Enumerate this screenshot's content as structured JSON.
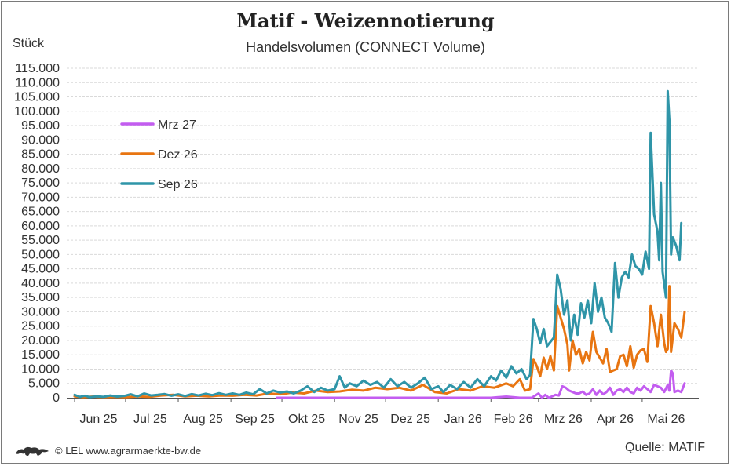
{
  "title": "Matif - Weizennotierung",
  "subtitle": "Handelsvolumen (CONNECT Volume)",
  "unit_label": "Stück",
  "footer": {
    "copyright": "© LEL www.agrarmaerkte-bw.de",
    "source": "Quelle: MATIF",
    "logo_icon": "lion-crest-icon"
  },
  "colors": {
    "Mrz 27": "#c35df0",
    "Dez 26": "#e87511",
    "Sep 26": "#2f95a8",
    "grid": "#d9d9d9"
  },
  "chart_data": {
    "type": "line",
    "title": "Matif - Weizennotierung",
    "subtitle": "Handelsvolumen (CONNECT Volume)",
    "ylabel": "Stück",
    "ylim": [
      0,
      115000
    ],
    "ytick_step": 5000,
    "ytick_labels": [
      "0",
      "5.000",
      "10.000",
      "15.000",
      "20.000",
      "25.000",
      "30.000",
      "35.000",
      "40.000",
      "45.000",
      "50.000",
      "55.000",
      "60.000",
      "65.000",
      "70.000",
      "75.000",
      "80.000",
      "85.000",
      "90.000",
      "95.000",
      "100.000",
      "105.000",
      "110.000",
      "115.000"
    ],
    "xtick_labels": [
      "Jun 25",
      "Jul 25",
      "Aug 25",
      "Sep 25",
      "Okt 25",
      "Nov 25",
      "Dez 25",
      "Jan 26",
      "Feb 26",
      "Mrz 26",
      "Apr 26",
      "Mai 26"
    ],
    "x_start": "2025-06-01",
    "grid": true,
    "legend_position": "top-left",
    "series": [
      {
        "name": "Mrz 27",
        "color": "#c35df0",
        "points": [
          [
            "2025-09-28",
            0
          ],
          [
            "2025-10-15",
            0
          ],
          [
            "2025-11-01",
            0
          ],
          [
            "2025-11-20",
            0
          ],
          [
            "2025-12-05",
            0
          ],
          [
            "2025-12-20",
            0
          ],
          [
            "2026-01-05",
            0
          ],
          [
            "2026-01-20",
            0
          ],
          [
            "2026-02-01",
            0
          ],
          [
            "2026-02-10",
            400
          ],
          [
            "2026-02-18",
            0
          ],
          [
            "2026-02-25",
            0
          ],
          [
            "2026-03-01",
            1500
          ],
          [
            "2026-03-03",
            0
          ],
          [
            "2026-03-05",
            1000
          ],
          [
            "2026-03-07",
            0
          ],
          [
            "2026-03-09",
            500
          ],
          [
            "2026-03-11",
            1000
          ],
          [
            "2026-03-13",
            800
          ],
          [
            "2026-03-15",
            4000
          ],
          [
            "2026-03-17",
            3500
          ],
          [
            "2026-03-19",
            2500
          ],
          [
            "2026-03-21",
            2000
          ],
          [
            "2026-03-23",
            1500
          ],
          [
            "2026-03-25",
            1500
          ],
          [
            "2026-03-27",
            2200
          ],
          [
            "2026-03-29",
            1000
          ],
          [
            "2026-03-31",
            1500
          ],
          [
            "2026-04-02",
            3000
          ],
          [
            "2026-04-04",
            1000
          ],
          [
            "2026-04-06",
            2500
          ],
          [
            "2026-04-08",
            1200
          ],
          [
            "2026-04-10",
            2000
          ],
          [
            "2026-04-12",
            3500
          ],
          [
            "2026-04-14",
            1000
          ],
          [
            "2026-04-16",
            2500
          ],
          [
            "2026-04-18",
            3000
          ],
          [
            "2026-04-20",
            2000
          ],
          [
            "2026-04-22",
            3500
          ],
          [
            "2026-04-24",
            2000
          ],
          [
            "2026-04-26",
            1500
          ],
          [
            "2026-04-28",
            3500
          ],
          [
            "2026-04-30",
            2500
          ],
          [
            "2026-05-02",
            4000
          ],
          [
            "2026-05-04",
            3000
          ],
          [
            "2026-05-06",
            2000
          ],
          [
            "2026-05-08",
            4500
          ],
          [
            "2026-05-10",
            4000
          ],
          [
            "2026-05-12",
            3500
          ],
          [
            "2026-05-14",
            2000
          ],
          [
            "2026-05-16",
            4500
          ],
          [
            "2026-05-17",
            2500
          ],
          [
            "2026-05-18",
            9500
          ],
          [
            "2026-05-19",
            8500
          ],
          [
            "2026-05-20",
            2000
          ],
          [
            "2026-05-22",
            2500
          ],
          [
            "2026-05-24",
            2000
          ],
          [
            "2026-05-26",
            5000
          ]
        ]
      },
      {
        "name": "Dez 26",
        "color": "#e87511",
        "points": [
          [
            "2025-06-01",
            500
          ],
          [
            "2025-06-06",
            200
          ],
          [
            "2025-06-12",
            400
          ],
          [
            "2025-06-18",
            200
          ],
          [
            "2025-06-25",
            300
          ],
          [
            "2025-07-01",
            200
          ],
          [
            "2025-07-08",
            500
          ],
          [
            "2025-07-15",
            300
          ],
          [
            "2025-07-22",
            800
          ],
          [
            "2025-07-29",
            1000
          ],
          [
            "2025-08-05",
            500
          ],
          [
            "2025-08-12",
            700
          ],
          [
            "2025-08-19",
            500
          ],
          [
            "2025-08-26",
            800
          ],
          [
            "2025-09-02",
            700
          ],
          [
            "2025-09-09",
            1000
          ],
          [
            "2025-09-16",
            800
          ],
          [
            "2025-09-23",
            1500
          ],
          [
            "2025-09-30",
            1200
          ],
          [
            "2025-10-07",
            1800
          ],
          [
            "2025-10-14",
            1500
          ],
          [
            "2025-10-21",
            2500
          ],
          [
            "2025-10-28",
            2000
          ],
          [
            "2025-11-04",
            2200
          ],
          [
            "2025-11-11",
            2800
          ],
          [
            "2025-11-18",
            2500
          ],
          [
            "2025-11-25",
            3500
          ],
          [
            "2025-12-02",
            3000
          ],
          [
            "2025-12-09",
            3500
          ],
          [
            "2025-12-16",
            2500
          ],
          [
            "2025-12-23",
            4500
          ],
          [
            "2025-12-30",
            2000
          ],
          [
            "2026-01-06",
            1500
          ],
          [
            "2026-01-13",
            3000
          ],
          [
            "2026-01-20",
            2500
          ],
          [
            "2026-01-27",
            4000
          ],
          [
            "2026-02-03",
            3500
          ],
          [
            "2026-02-10",
            5000
          ],
          [
            "2026-02-14",
            4000
          ],
          [
            "2026-02-18",
            6500
          ],
          [
            "2026-02-21",
            2500
          ],
          [
            "2026-02-24",
            3000
          ],
          [
            "2026-02-26",
            13500
          ],
          [
            "2026-02-28",
            11000
          ],
          [
            "2026-03-02",
            7500
          ],
          [
            "2026-03-04",
            14000
          ],
          [
            "2026-03-06",
            10000
          ],
          [
            "2026-03-08",
            14500
          ],
          [
            "2026-03-10",
            9500
          ],
          [
            "2026-03-12",
            32000
          ],
          [
            "2026-03-14",
            28000
          ],
          [
            "2026-03-16",
            24000
          ],
          [
            "2026-03-18",
            18500
          ],
          [
            "2026-03-19",
            9500
          ],
          [
            "2026-03-21",
            20000
          ],
          [
            "2026-03-23",
            15000
          ],
          [
            "2026-03-25",
            17000
          ],
          [
            "2026-03-27",
            12000
          ],
          [
            "2026-03-29",
            16000
          ],
          [
            "2026-03-31",
            13000
          ],
          [
            "2026-04-02",
            23000
          ],
          [
            "2026-04-04",
            16000
          ],
          [
            "2026-04-06",
            14000
          ],
          [
            "2026-04-08",
            12000
          ],
          [
            "2026-04-10",
            17000
          ],
          [
            "2026-04-12",
            9000
          ],
          [
            "2026-04-14",
            9500
          ],
          [
            "2026-04-16",
            10000
          ],
          [
            "2026-04-18",
            14500
          ],
          [
            "2026-04-20",
            15000
          ],
          [
            "2026-04-22",
            11000
          ],
          [
            "2026-04-24",
            18000
          ],
          [
            "2026-04-26",
            10500
          ],
          [
            "2026-04-28",
            15000
          ],
          [
            "2026-04-30",
            16500
          ],
          [
            "2026-05-02",
            17000
          ],
          [
            "2026-05-04",
            12500
          ],
          [
            "2026-05-06",
            32000
          ],
          [
            "2026-05-08",
            26000
          ],
          [
            "2026-05-10",
            18000
          ],
          [
            "2026-05-12",
            29000
          ],
          [
            "2026-05-14",
            19000
          ],
          [
            "2026-05-15",
            16000
          ],
          [
            "2026-05-16",
            17000
          ],
          [
            "2026-05-17",
            39000
          ],
          [
            "2026-05-18",
            16000
          ],
          [
            "2026-05-20",
            26000
          ],
          [
            "2026-05-22",
            24000
          ],
          [
            "2026-05-24",
            21000
          ],
          [
            "2026-05-26",
            30000
          ]
        ]
      },
      {
        "name": "Sep 26",
        "color": "#2f95a8",
        "points": [
          [
            "2025-06-01",
            1000
          ],
          [
            "2025-06-04",
            300
          ],
          [
            "2025-06-07",
            700
          ],
          [
            "2025-06-10",
            200
          ],
          [
            "2025-06-14",
            500
          ],
          [
            "2025-06-18",
            300
          ],
          [
            "2025-06-22",
            800
          ],
          [
            "2025-06-26",
            400
          ],
          [
            "2025-06-30",
            600
          ],
          [
            "2025-07-04",
            1200
          ],
          [
            "2025-07-08",
            500
          ],
          [
            "2025-07-12",
            1500
          ],
          [
            "2025-07-16",
            800
          ],
          [
            "2025-07-20",
            1000
          ],
          [
            "2025-07-24",
            1300
          ],
          [
            "2025-07-28",
            700
          ],
          [
            "2025-08-01",
            1200
          ],
          [
            "2025-08-05",
            600
          ],
          [
            "2025-08-09",
            1300
          ],
          [
            "2025-08-13",
            800
          ],
          [
            "2025-08-17",
            1400
          ],
          [
            "2025-08-21",
            900
          ],
          [
            "2025-08-25",
            1600
          ],
          [
            "2025-08-29",
            1000
          ],
          [
            "2025-09-02",
            1500
          ],
          [
            "2025-09-06",
            1000
          ],
          [
            "2025-09-10",
            1800
          ],
          [
            "2025-09-14",
            1200
          ],
          [
            "2025-09-18",
            3000
          ],
          [
            "2025-09-22",
            1500
          ],
          [
            "2025-09-26",
            2500
          ],
          [
            "2025-09-30",
            1800
          ],
          [
            "2025-10-04",
            2200
          ],
          [
            "2025-10-08",
            1500
          ],
          [
            "2025-10-12",
            2500
          ],
          [
            "2025-10-16",
            4000
          ],
          [
            "2025-10-20",
            2000
          ],
          [
            "2025-10-24",
            3500
          ],
          [
            "2025-10-28",
            2500
          ],
          [
            "2025-11-01",
            3000
          ],
          [
            "2025-11-04",
            7500
          ],
          [
            "2025-11-07",
            3500
          ],
          [
            "2025-11-10",
            5000
          ],
          [
            "2025-11-14",
            4000
          ],
          [
            "2025-11-18",
            6000
          ],
          [
            "2025-11-22",
            4500
          ],
          [
            "2025-11-26",
            5500
          ],
          [
            "2025-11-30",
            3500
          ],
          [
            "2025-12-04",
            6500
          ],
          [
            "2025-12-08",
            4000
          ],
          [
            "2025-12-12",
            5500
          ],
          [
            "2025-12-16",
            3500
          ],
          [
            "2025-12-20",
            5000
          ],
          [
            "2025-12-24",
            7000
          ],
          [
            "2025-12-28",
            3000
          ],
          [
            "2026-01-01",
            4000
          ],
          [
            "2026-01-04",
            2000
          ],
          [
            "2026-01-08",
            4500
          ],
          [
            "2026-01-12",
            3000
          ],
          [
            "2026-01-16",
            5500
          ],
          [
            "2026-01-20",
            3500
          ],
          [
            "2026-01-24",
            6500
          ],
          [
            "2026-01-28",
            4000
          ],
          [
            "2026-02-01",
            7500
          ],
          [
            "2026-02-04",
            6000
          ],
          [
            "2026-02-07",
            9500
          ],
          [
            "2026-02-10",
            7000
          ],
          [
            "2026-02-13",
            11000
          ],
          [
            "2026-02-16",
            8500
          ],
          [
            "2026-02-19",
            10000
          ],
          [
            "2026-02-22",
            6500
          ],
          [
            "2026-02-24",
            8000
          ],
          [
            "2026-02-26",
            27500
          ],
          [
            "2026-02-28",
            24000
          ],
          [
            "2026-03-02",
            19000
          ],
          [
            "2026-03-04",
            24000
          ],
          [
            "2026-03-06",
            18000
          ],
          [
            "2026-03-08",
            19500
          ],
          [
            "2026-03-10",
            21000
          ],
          [
            "2026-03-12",
            43000
          ],
          [
            "2026-03-14",
            38000
          ],
          [
            "2026-03-16",
            29000
          ],
          [
            "2026-03-18",
            34000
          ],
          [
            "2026-03-20",
            20000
          ],
          [
            "2026-03-22",
            29000
          ],
          [
            "2026-03-24",
            22000
          ],
          [
            "2026-03-26",
            33000
          ],
          [
            "2026-03-28",
            28000
          ],
          [
            "2026-03-30",
            34000
          ],
          [
            "2026-04-01",
            26000
          ],
          [
            "2026-04-03",
            40000
          ],
          [
            "2026-04-05",
            30000
          ],
          [
            "2026-04-07",
            35000
          ],
          [
            "2026-04-09",
            28000
          ],
          [
            "2026-04-11",
            26000
          ],
          [
            "2026-04-13",
            23000
          ],
          [
            "2026-04-15",
            47000
          ],
          [
            "2026-04-17",
            35000
          ],
          [
            "2026-04-19",
            42000
          ],
          [
            "2026-04-21",
            44000
          ],
          [
            "2026-04-23",
            42000
          ],
          [
            "2026-04-25",
            50000
          ],
          [
            "2026-04-27",
            46000
          ],
          [
            "2026-04-29",
            45000
          ],
          [
            "2026-05-01",
            43000
          ],
          [
            "2026-05-03",
            51000
          ],
          [
            "2026-05-05",
            45000
          ],
          [
            "2026-05-06",
            92500
          ],
          [
            "2026-05-08",
            64000
          ],
          [
            "2026-05-10",
            58000
          ],
          [
            "2026-05-11",
            48000
          ],
          [
            "2026-05-12",
            75000
          ],
          [
            "2026-05-13",
            44000
          ],
          [
            "2026-05-15",
            35000
          ],
          [
            "2026-05-16",
            107000
          ],
          [
            "2026-05-17",
            97000
          ],
          [
            "2026-05-18",
            50000
          ],
          [
            "2026-05-19",
            56000
          ],
          [
            "2026-05-21",
            53000
          ],
          [
            "2026-05-23",
            48000
          ],
          [
            "2026-05-24",
            61000
          ]
        ]
      }
    ]
  }
}
